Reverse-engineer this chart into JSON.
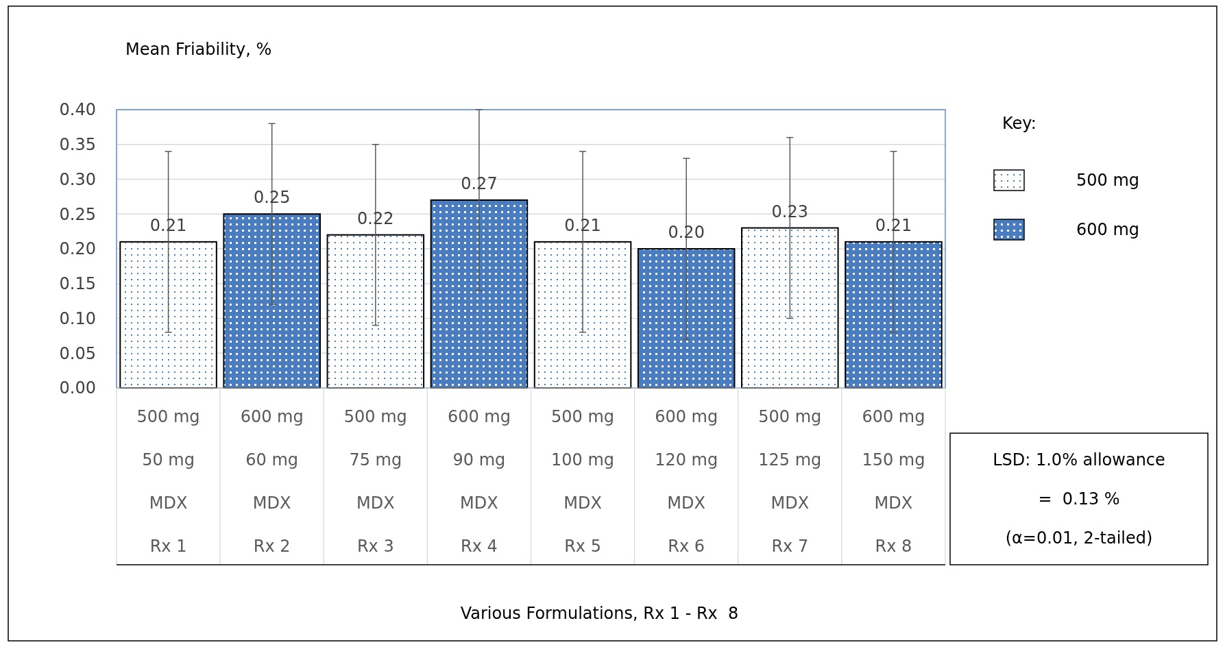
{
  "chart_data": {
    "type": "bar",
    "ylabel": "Mean Friability, %",
    "legend_title": "Key:",
    "categories": [
      "500 mg\n50 mg\nMDX\nRx 1",
      "600 mg\n60 mg\nMDX\nRx 2",
      "500 mg\n75 mg\nMDX\nRx 3",
      "600 mg\n90 mg\nMDX\nRx 4",
      "500 mg\n100 mg\nMDX\nRx 5",
      "600 mg\n120 mg\nMDX\nRx 6",
      "500 mg\n125 mg\nMDX\nRx 7",
      "600 mg\n150 mg\nMDX\nRx 8"
    ],
    "series": [
      {
        "name": "500 mg",
        "color": "#ffffff",
        "values": [
          0.21,
          null,
          0.22,
          null,
          0.21,
          null,
          0.23,
          null
        ],
        "value_labels": [
          "0.21",
          null,
          "0.22",
          null,
          "0.21",
          null,
          "0.23",
          null
        ],
        "errors": [
          0.13,
          null,
          0.13,
          null,
          0.13,
          null,
          0.13,
          null
        ]
      },
      {
        "name": "600 mg",
        "color": "#4a7cc0",
        "values": [
          null,
          0.25,
          null,
          0.27,
          null,
          0.2,
          null,
          0.21
        ],
        "value_labels": [
          null,
          "0.25",
          null,
          "0.27",
          null,
          "0.20",
          null,
          "0.21"
        ],
        "errors": [
          null,
          0.13,
          null,
          0.13,
          null,
          0.13,
          null,
          0.13
        ]
      }
    ],
    "ylim": [
      0,
      0.4
    ],
    "yticks": [
      {
        "value": 0,
        "label": "0.00"
      },
      {
        "value": 0.05,
        "label": "0.05"
      },
      {
        "value": 0.1,
        "label": "0.10"
      },
      {
        "value": 0.15,
        "label": "0.15"
      },
      {
        "value": 0.2,
        "label": "0.20"
      },
      {
        "value": 0.25,
        "label": "0.25"
      },
      {
        "value": 0.3,
        "label": "0.30"
      },
      {
        "value": 0.35,
        "label": "0.35"
      },
      {
        "value": 0.4,
        "label": "0.40"
      }
    ],
    "grid": "y",
    "legend": "right",
    "annotations": [
      "Various Formulations, Rx 1 - Rx  8",
      "LSD: 1.0% allowance",
      "=  0.13 %",
      "(α=0.01, 2-tailed)"
    ]
  }
}
